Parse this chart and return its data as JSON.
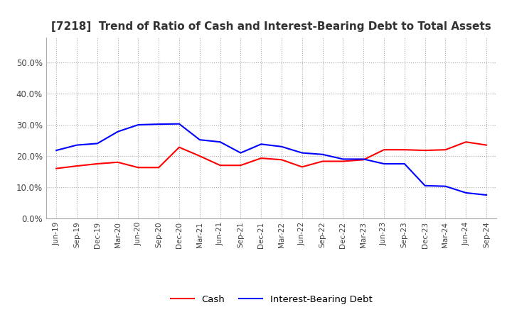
{
  "title": "[7218]  Trend of Ratio of Cash and Interest-Bearing Debt to Total Assets",
  "title_fontsize": 11,
  "ylim": [
    0.0,
    0.58
  ],
  "yticks": [
    0.0,
    0.1,
    0.2,
    0.3,
    0.4,
    0.5
  ],
  "ytick_labels": [
    "0.0%",
    "10.0%",
    "20.0%",
    "30.0%",
    "40.0%",
    "50.0%"
  ],
  "background_color": "#ffffff",
  "grid_color": "#aaaaaa",
  "x_labels": [
    "Jun-19",
    "Sep-19",
    "Dec-19",
    "Mar-20",
    "Jun-20",
    "Sep-20",
    "Dec-20",
    "Mar-21",
    "Jun-21",
    "Sep-21",
    "Dec-21",
    "Mar-22",
    "Jun-22",
    "Sep-22",
    "Dec-22",
    "Mar-23",
    "Jun-23",
    "Sep-23",
    "Dec-23",
    "Mar-24",
    "Jun-24",
    "Sep-24"
  ],
  "cash": [
    0.16,
    0.168,
    0.175,
    0.18,
    0.163,
    0.163,
    0.228,
    0.2,
    0.17,
    0.17,
    0.193,
    0.188,
    0.165,
    0.183,
    0.183,
    0.188,
    0.22,
    0.22,
    0.218,
    0.22,
    0.245,
    0.235
  ],
  "interest_bearing_debt": [
    0.218,
    0.235,
    0.24,
    0.278,
    0.3,
    0.302,
    0.303,
    0.252,
    0.245,
    0.21,
    0.238,
    0.23,
    0.21,
    0.205,
    0.19,
    0.19,
    0.175,
    0.175,
    0.105,
    0.103,
    0.082,
    0.075
  ],
  "cash_color": "#ff0000",
  "debt_color": "#0000ff",
  "line_width": 1.5
}
